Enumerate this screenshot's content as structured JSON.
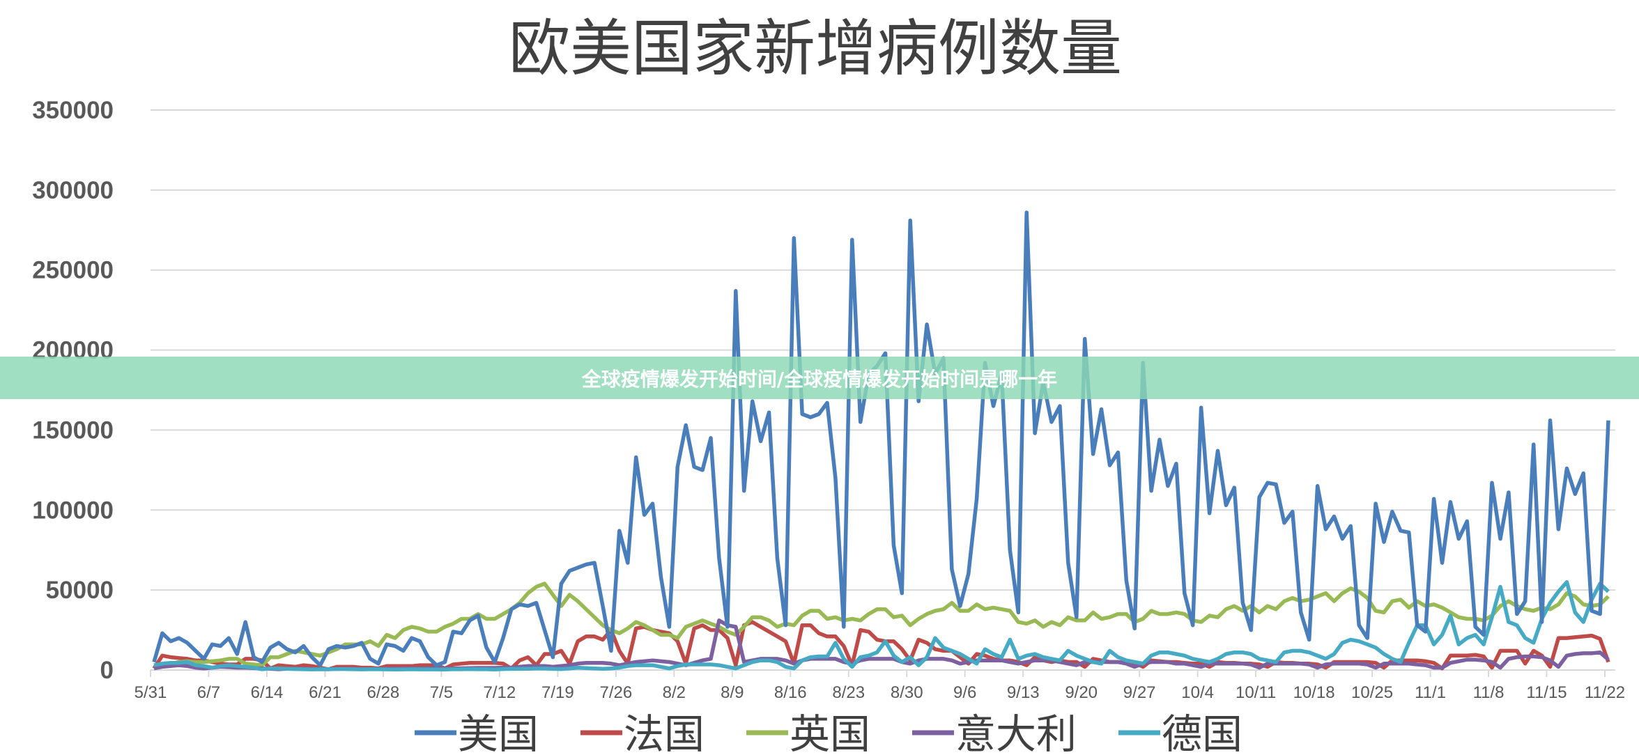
{
  "chart_data": {
    "type": "line",
    "title": "欧美国家新增病例数量",
    "xlabel": "",
    "ylabel": "",
    "ylim": [
      0,
      350000
    ],
    "y_ticks": [
      "0",
      "50000",
      "100000",
      "150000",
      "200000",
      "250000",
      "300000",
      "350000"
    ],
    "x_ticks": [
      "5/31",
      "6/7",
      "6/14",
      "6/21",
      "6/28",
      "7/5",
      "7/12",
      "7/19",
      "7/26",
      "8/2",
      "8/9",
      "8/16",
      "8/23",
      "8/30",
      "9/6",
      "9/13",
      "9/20",
      "9/27",
      "10/4",
      "10/11",
      "10/18",
      "10/25",
      "11/1",
      "11/8",
      "11/15",
      "11/22"
    ],
    "grid": true,
    "legend": "bottom",
    "categories": [
      "5/31",
      "6/1",
      "6/2",
      "6/3",
      "6/4",
      "6/5",
      "6/6",
      "6/7",
      "6/8",
      "6/9",
      "6/10",
      "6/11",
      "6/12",
      "6/13",
      "6/14",
      "6/15",
      "6/16",
      "6/17",
      "6/18",
      "6/19",
      "6/20",
      "6/21",
      "6/22",
      "6/23",
      "6/24",
      "6/25",
      "6/26",
      "6/27",
      "6/28",
      "6/29",
      "6/30",
      "7/1",
      "7/2",
      "7/3",
      "7/4",
      "7/5",
      "7/6",
      "7/7",
      "7/8",
      "7/9",
      "7/10",
      "7/11",
      "7/12",
      "7/13",
      "7/14",
      "7/15",
      "7/16",
      "7/17",
      "7/18",
      "7/19",
      "7/20",
      "7/21",
      "7/22",
      "7/23",
      "7/24",
      "7/25",
      "7/26",
      "7/27",
      "7/28",
      "7/29",
      "7/30",
      "7/31",
      "8/1",
      "8/2",
      "8/3",
      "8/4",
      "8/5",
      "8/6",
      "8/7",
      "8/8",
      "8/9",
      "8/10",
      "8/11",
      "8/12",
      "8/13",
      "8/14",
      "8/15",
      "8/16",
      "8/17",
      "8/18",
      "8/19",
      "8/20",
      "8/21",
      "8/22",
      "8/23",
      "8/24",
      "8/25",
      "8/26",
      "8/27",
      "8/28",
      "8/29",
      "8/30",
      "8/31",
      "9/1",
      "9/2",
      "9/3",
      "9/4",
      "9/5",
      "9/6",
      "9/7",
      "9/8",
      "9/9",
      "9/10",
      "9/11",
      "9/12",
      "9/13",
      "9/14",
      "9/15",
      "9/16",
      "9/17",
      "9/18",
      "9/19",
      "9/20",
      "9/21",
      "9/22",
      "9/23",
      "9/24",
      "9/25",
      "9/26",
      "9/27",
      "9/28",
      "9/29",
      "9/30",
      "10/1",
      "10/2",
      "10/3",
      "10/4",
      "10/5",
      "10/6",
      "10/7",
      "10/8",
      "10/9",
      "10/10",
      "10/11",
      "10/12",
      "10/13",
      "10/14",
      "10/15",
      "10/16",
      "10/17",
      "10/18",
      "10/19",
      "10/20",
      "10/21",
      "10/22",
      "10/23",
      "10/24",
      "10/25",
      "10/26",
      "10/27",
      "10/28",
      "10/29",
      "10/30",
      "10/31",
      "11/1",
      "11/2",
      "11/3",
      "11/4",
      "11/5",
      "11/6",
      "11/7",
      "11/8",
      "11/9",
      "11/10",
      "11/11",
      "11/12",
      "11/13",
      "11/14",
      "11/15",
      "11/16",
      "11/17",
      "11/18",
      "11/19",
      "11/20",
      "11/21",
      "11/22"
    ],
    "series": [
      {
        "name": "美国",
        "color": "#4a7ebb",
        "values": [
          5000,
          23000,
          18000,
          20000,
          17000,
          12000,
          7000,
          16000,
          15000,
          20000,
          10000,
          30000,
          8000,
          5000,
          14000,
          17000,
          13000,
          11000,
          15000,
          8000,
          3000,
          13000,
          15000,
          14000,
          15000,
          17000,
          7000,
          4000,
          16000,
          15000,
          12000,
          20000,
          18000,
          8000,
          3000,
          5000,
          24000,
          23000,
          31000,
          34000,
          14000,
          5000,
          20000,
          38000,
          41000,
          40000,
          42000,
          25000,
          8000,
          54000,
          62000,
          64000,
          66000,
          67000,
          40000,
          12000,
          87000,
          67000,
          133000,
          97000,
          104000,
          58000,
          27000,
          127000,
          153000,
          127000,
          125000,
          145000,
          70000,
          27000,
          237000,
          112000,
          168000,
          143000,
          161000,
          70000,
          28000,
          270000,
          160000,
          158000,
          160000,
          167000,
          120000,
          27000,
          269000,
          155000,
          185000,
          190000,
          198000,
          78000,
          48000,
          281000,
          168000,
          216000,
          185000,
          195000,
          63000,
          40000,
          60000,
          107000,
          192000,
          165000,
          185000,
          75000,
          36000,
          286000,
          148000,
          180000,
          155000,
          165000,
          67000,
          33000,
          207000,
          135000,
          163000,
          128000,
          136000,
          56000,
          26000,
          192000,
          112000,
          144000,
          115000,
          129000,
          48000,
          28000,
          164000,
          98000,
          137000,
          103000,
          114000,
          42000,
          25000,
          108000,
          117000,
          116000,
          92000,
          99000,
          36000,
          19000,
          115000,
          88000,
          96000,
          82000,
          90000,
          28000,
          20000,
          104000,
          80000,
          99000,
          87000,
          86000,
          28000,
          24000,
          107000,
          67000,
          105000,
          82000,
          93000,
          27000,
          22000,
          117000,
          82000,
          111000,
          35000,
          43000,
          141000,
          30000,
          156000,
          88000,
          126000,
          110000,
          123000,
          37000,
          35000,
          156000
        ]
      },
      {
        "name": "法国",
        "color": "#be4b48",
        "values": [
          1000,
          9000,
          8000,
          7500,
          7000,
          6000,
          6000,
          5000,
          4000,
          3500,
          3500,
          7000,
          7000,
          6000,
          1000,
          3000,
          2500,
          2000,
          3000,
          2500,
          1500,
          500,
          2000,
          2000,
          2000,
          1500,
          1500,
          1000,
          2500,
          2500,
          2500,
          2500,
          3000,
          3000,
          3000,
          1000,
          3500,
          4000,
          4500,
          4500,
          4500,
          4500,
          4000,
          1000,
          6000,
          8000,
          3000,
          10000,
          10000,
          12000,
          4000,
          18000,
          21000,
          21000,
          19000,
          25000,
          12000,
          4000,
          26000,
          27000,
          25000,
          24000,
          23000,
          18000,
          4000,
          26000,
          28000,
          25000,
          25000,
          20000,
          3000,
          28000,
          30000,
          27000,
          24000,
          21000,
          18000,
          4000,
          28000,
          28000,
          23000,
          21000,
          21000,
          15000,
          3000,
          25000,
          24000,
          19000,
          18000,
          18000,
          13000,
          6000,
          19000,
          17000,
          13000,
          12000,
          12000,
          8000,
          4000,
          10000,
          9000,
          7000,
          6000,
          6000,
          5000,
          3000,
          8000,
          6000,
          5000,
          6000,
          5000,
          5000,
          2000,
          7000,
          6000,
          5000,
          5000,
          4500,
          4500,
          2000,
          6000,
          5500,
          5000,
          5000,
          4500,
          4000,
          4000,
          2000,
          5000,
          4500,
          4500,
          4000,
          4000,
          3500,
          2000,
          5000,
          4500,
          4500,
          4000,
          4000,
          3500,
          1500,
          5000,
          5000,
          5000,
          5000,
          5000,
          4500,
          1500,
          6000,
          6000,
          6000,
          6000,
          5500,
          4500,
          1000,
          9000,
          9000,
          9000,
          9500,
          8500,
          1500,
          12000,
          12000,
          12000,
          4000,
          12000,
          9000,
          2000,
          20000,
          20000,
          20500,
          21000,
          21500,
          19500,
          5000
        ]
      },
      {
        "name": "英国",
        "color": "#98b954",
        "values": [
          2000,
          3000,
          4000,
          5000,
          5500,
          5000,
          5000,
          5500,
          6000,
          7000,
          7000,
          4000,
          3500,
          3000,
          8000,
          8000,
          10000,
          12000,
          11000,
          10000,
          9000,
          11000,
          13000,
          16000,
          16000,
          16000,
          18000,
          15000,
          22000,
          20000,
          25000,
          27000,
          26000,
          24000,
          24000,
          27000,
          29000,
          32000,
          32000,
          35000,
          32000,
          32000,
          35000,
          38000,
          42000,
          48000,
          52000,
          54000,
          47000,
          40000,
          47000,
          43000,
          38000,
          33000,
          28000,
          25000,
          23000,
          26000,
          30000,
          28000,
          25000,
          22000,
          22000,
          20000,
          27000,
          29000,
          31000,
          29000,
          27000,
          24000,
          22000,
          27000,
          33000,
          33000,
          31000,
          27000,
          29000,
          28000,
          34000,
          37000,
          37000,
          32000,
          33000,
          31000,
          32000,
          31000,
          35000,
          38000,
          38000,
          33000,
          34000,
          28000,
          32000,
          35000,
          37000,
          38000,
          42000,
          37000,
          37000,
          41000,
          38000,
          39000,
          38000,
          37000,
          30000,
          29000,
          31000,
          27000,
          30000,
          28000,
          33000,
          31000,
          31000,
          36000,
          32000,
          33000,
          35000,
          35000,
          30000,
          32000,
          37000,
          35000,
          35000,
          36000,
          35000,
          31000,
          30000,
          34000,
          33000,
          38000,
          40000,
          37000,
          40000,
          36000,
          40000,
          38000,
          43000,
          45000,
          43000,
          44000,
          46000,
          48000,
          43000,
          48000,
          51000,
          49000,
          45000,
          37000,
          36000,
          43000,
          44000,
          39000,
          43000,
          40000,
          41000,
          39000,
          36000,
          33000,
          32000,
          32000,
          31000,
          34000,
          40000,
          43000,
          40000,
          38000,
          37000,
          39000,
          38000,
          41000,
          48000,
          46000,
          41000,
          40000,
          41000,
          46000
        ]
      },
      {
        "name": "意大利",
        "color": "#7d60a0",
        "values": [
          1000,
          2000,
          2500,
          3000,
          2500,
          1500,
          1000,
          1500,
          2000,
          1800,
          1500,
          1500,
          1200,
          1000,
          800,
          500,
          800,
          1000,
          800,
          600,
          500,
          500,
          800,
          800,
          800,
          600,
          600,
          700,
          800,
          900,
          1000,
          1000,
          1000,
          1200,
          1100,
          1000,
          1000,
          1100,
          1200,
          1300,
          1300,
          1300,
          1500,
          1500,
          2000,
          2500,
          2500,
          2500,
          2000,
          2500,
          3000,
          4000,
          4500,
          4500,
          4500,
          4000,
          3000,
          4000,
          5000,
          5500,
          6000,
          5500,
          5000,
          4000,
          3000,
          4500,
          6000,
          7000,
          31000,
          28000,
          27000,
          5000,
          6000,
          7000,
          7000,
          7000,
          6000,
          4000,
          6000,
          7000,
          7000,
          7000,
          7000,
          5000,
          4000,
          6000,
          7000,
          7000,
          7000,
          7000,
          5000,
          4000,
          6000,
          7000,
          7000,
          7000,
          6000,
          4000,
          5000,
          6000,
          6000,
          6000,
          6000,
          5000,
          4000,
          5000,
          6000,
          6000,
          6000,
          5000,
          4000,
          3000,
          5000,
          5000,
          5000,
          5000,
          5000,
          4000,
          2000,
          4000,
          5000,
          5000,
          5000,
          4000,
          4000,
          3000,
          2000,
          4000,
          4000,
          4000,
          4000,
          4000,
          3500,
          1500,
          4000,
          4000,
          4000,
          4000,
          4000,
          3500,
          1500,
          3500,
          4000,
          4000,
          4000,
          4000,
          3500,
          1500,
          4000,
          4000,
          4000,
          4000,
          3500,
          3000,
          1500,
          1500,
          4500,
          5500,
          6500,
          6500,
          6000,
          5000,
          1500,
          7000,
          8000,
          8500,
          8500,
          8000,
          6000,
          2000,
          9000,
          10000,
          10500,
          10500,
          11000,
          6500
        ]
      },
      {
        "name": "德国",
        "color": "#46aac5",
        "values": [
          3000,
          4000,
          4500,
          4500,
          5000,
          3000,
          2500,
          1500,
          2500,
          3000,
          2500,
          2000,
          1500,
          500,
          1000,
          1000,
          800,
          600,
          500,
          400,
          500,
          500,
          600,
          600,
          500,
          400,
          500,
          500,
          400,
          300,
          400,
          500,
          400,
          400,
          400,
          300,
          500,
          500,
          600,
          500,
          500,
          300,
          600,
          700,
          800,
          800,
          900,
          900,
          700,
          600,
          1000,
          1500,
          1200,
          1000,
          800,
          1000,
          1500,
          2500,
          3000,
          3000,
          3000,
          2000,
          1000,
          2500,
          3500,
          3500,
          3500,
          3500,
          3000,
          2000,
          1000,
          3000,
          5000,
          6000,
          6000,
          5000,
          2000,
          1000,
          6000,
          8000,
          8500,
          8500,
          17000,
          7000,
          2000,
          8000,
          9000,
          11000,
          18000,
          9000,
          5000,
          8000,
          3000,
          8000,
          20000,
          14000,
          12000,
          10000,
          7000,
          4000,
          13000,
          10000,
          8000,
          19000,
          7000,
          9000,
          10000,
          8000,
          7000,
          6000,
          12000,
          9000,
          7000,
          5000,
          4000,
          12000,
          8000,
          6000,
          5000,
          4000,
          9000,
          11000,
          11000,
          10000,
          9000,
          7000,
          6000,
          5000,
          7000,
          10000,
          11000,
          11000,
          10000,
          7000,
          6000,
          5000,
          11000,
          12000,
          12000,
          11000,
          9000,
          7000,
          10000,
          17000,
          19000,
          18000,
          16000,
          14000,
          10000,
          7000,
          5000,
          17000,
          28000,
          28000,
          16000,
          22000,
          34000,
          16000,
          20000,
          22000,
          16000,
          33000,
          52000,
          30000,
          28000,
          20000,
          17000,
          32000,
          42000,
          49000,
          55000,
          36000,
          30000,
          44000,
          54000,
          49000
        ]
      }
    ]
  },
  "banner": {
    "text": "全球疫情爆发开始时间/全球疫情爆发开始时间是哪一年"
  }
}
